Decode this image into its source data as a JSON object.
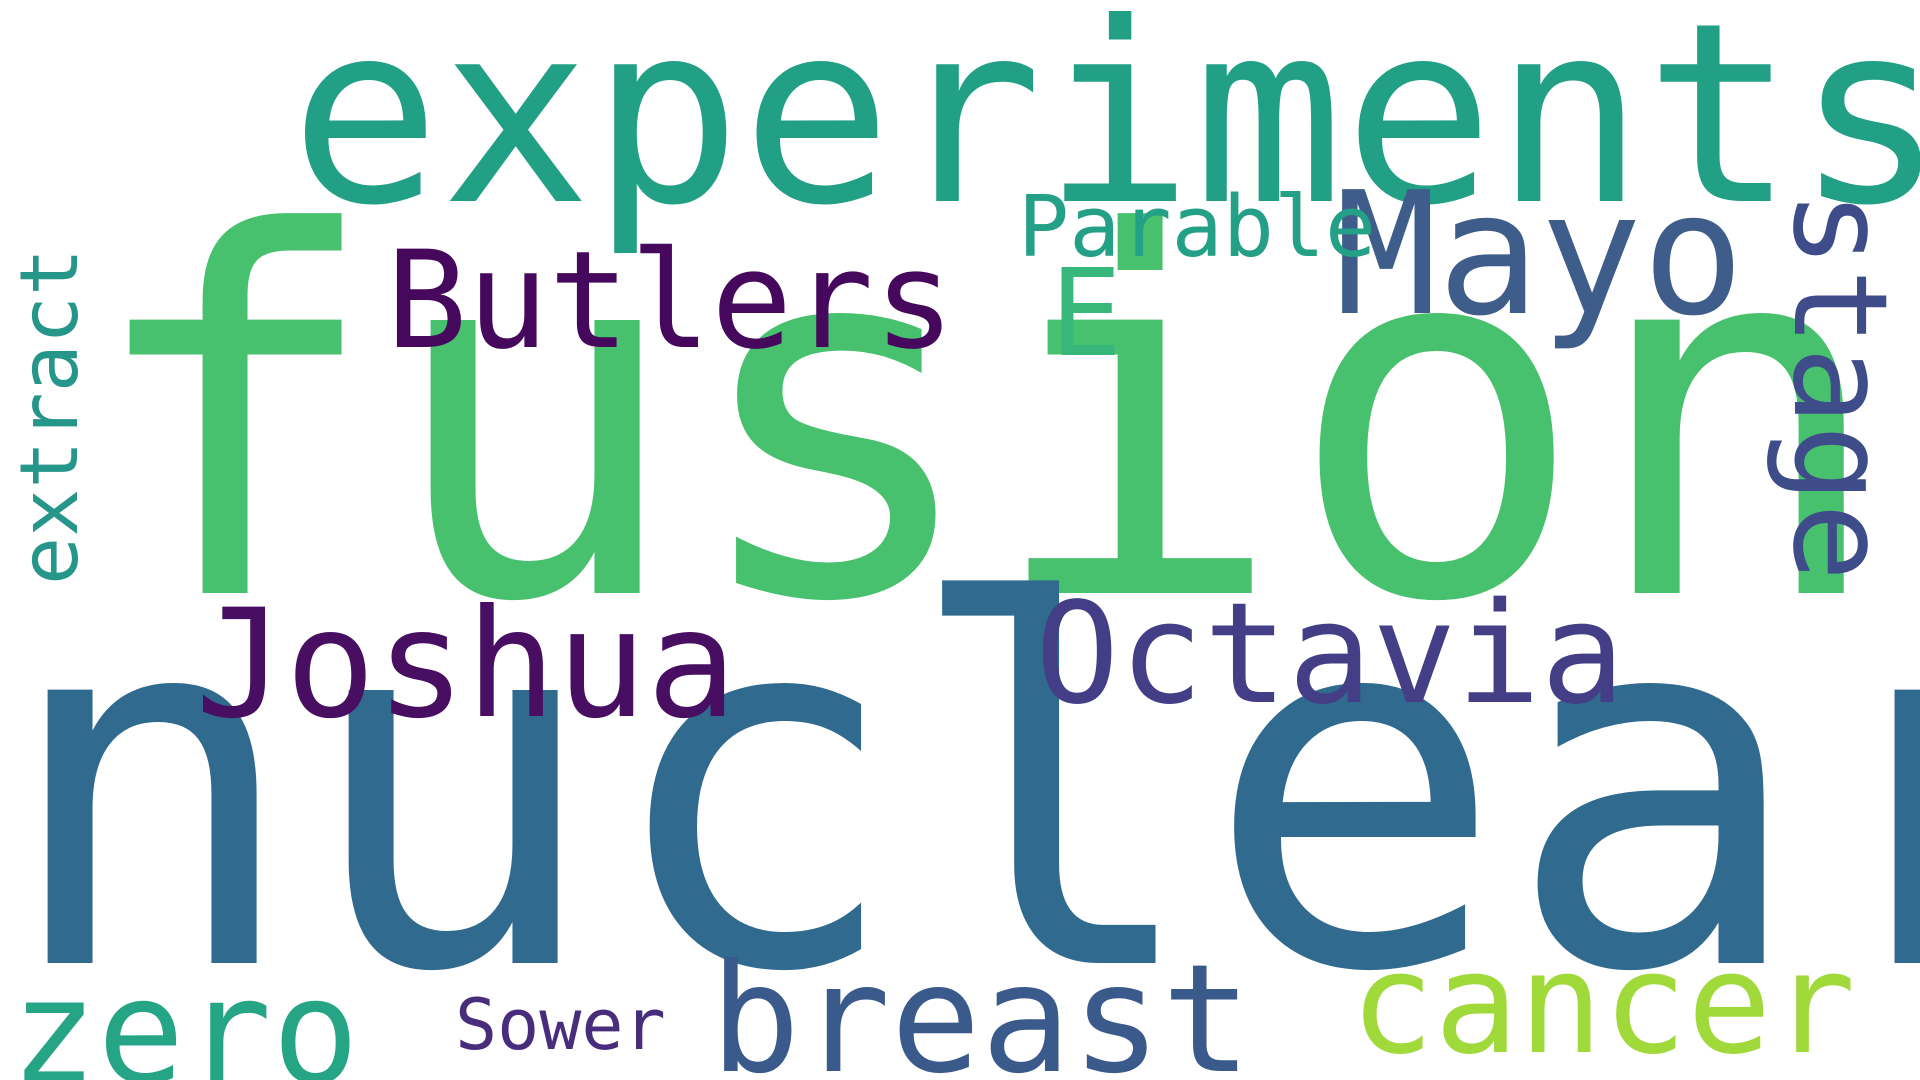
{
  "words": {
    "fusion": {
      "text": "fusion",
      "color": "#47c16e"
    },
    "nuclear": {
      "text": "nuclear",
      "color": "#306a8e"
    },
    "experiments": {
      "text": "experiments",
      "color": "#21a085"
    },
    "butlers": {
      "text": "Butlers",
      "color": "#46085c"
    },
    "joshua": {
      "text": "Joshua",
      "color": "#470e61"
    },
    "octavia": {
      "text": "Octavia",
      "color": "#433e85"
    },
    "mayo": {
      "text": "Mayo",
      "color": "#3e5d8a"
    },
    "parable": {
      "text": "Parable",
      "color": "#23a085"
    },
    "e": {
      "text": "E",
      "color": "#37b779"
    },
    "stage": {
      "text": "stage",
      "color": "#3e4c8a"
    },
    "extract": {
      "text": "extract",
      "color": "#26968b"
    },
    "breast": {
      "text": "breast",
      "color": "#3b5a8c"
    },
    "cancer": {
      "text": "cancer",
      "color": "#9fda3a"
    },
    "zero": {
      "text": "zero",
      "color": "#25a585"
    },
    "sower": {
      "text": "Sower",
      "color": "#472d7b"
    }
  }
}
